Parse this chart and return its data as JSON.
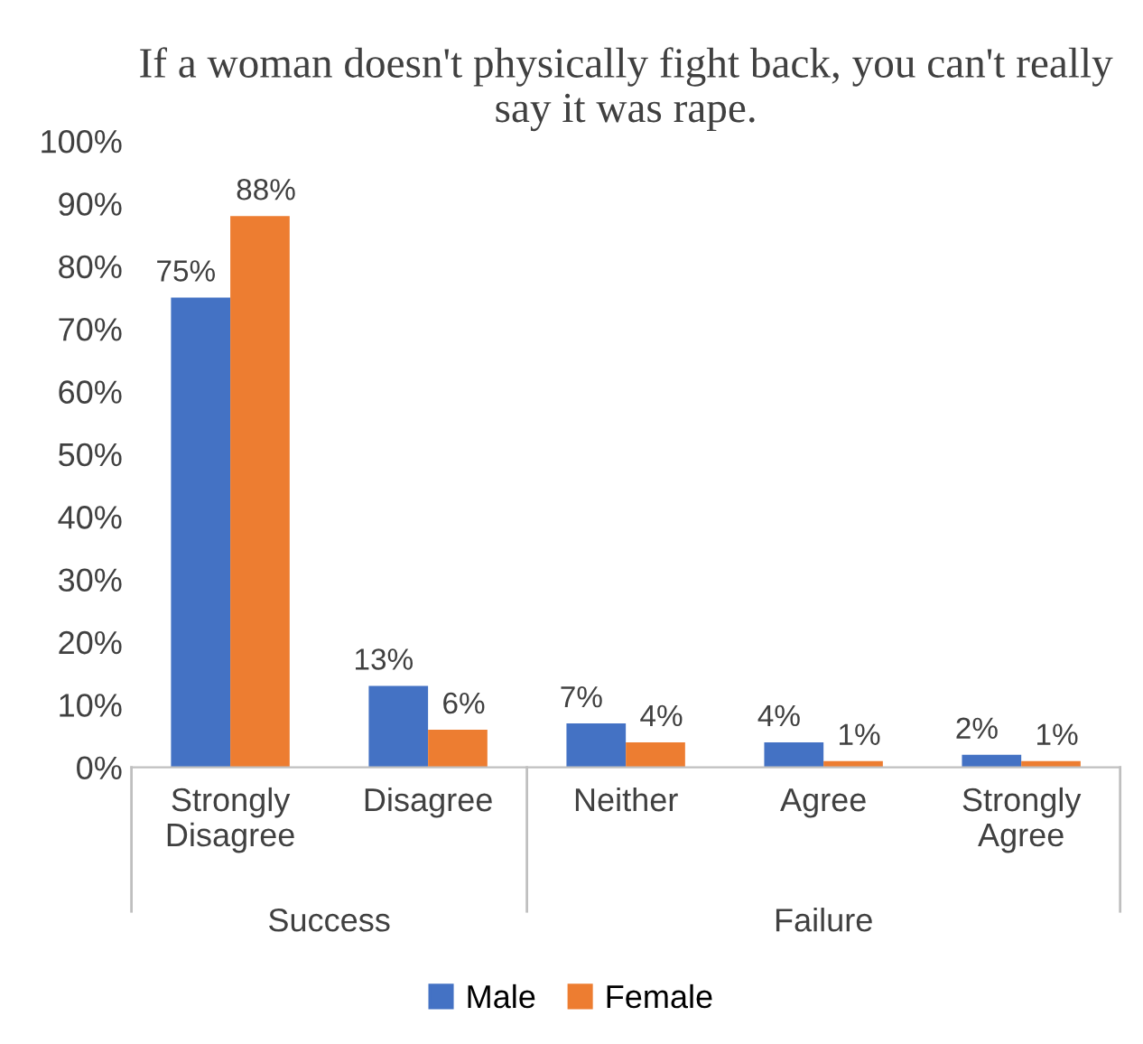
{
  "chart_data": {
    "type": "bar",
    "title": "If a woman doesn't physically fight back, you can't really say it was rape.",
    "categories": [
      "Strongly\nDisagree",
      "Disagree",
      "Neither",
      "Agree",
      "Strongly\nAgree"
    ],
    "series": [
      {
        "name": "Male",
        "color": "#4472c4",
        "values": [
          75,
          13,
          7,
          4,
          2
        ],
        "value_labels": [
          "75%",
          "13%",
          "7%",
          "4%",
          "2%"
        ]
      },
      {
        "name": "Female",
        "color": "#ed7d31",
        "values": [
          88,
          6,
          4,
          1,
          1
        ],
        "value_labels": [
          "88%",
          "6%",
          "4%",
          "1%",
          "1%"
        ]
      }
    ],
    "ylim": [
      0,
      100
    ],
    "yticks": [
      {
        "value": 0,
        "label": "0%"
      },
      {
        "value": 10,
        "label": "10%"
      },
      {
        "value": 20,
        "label": "20%"
      },
      {
        "value": 30,
        "label": "30%"
      },
      {
        "value": 40,
        "label": "40%"
      },
      {
        "value": 50,
        "label": "50%"
      },
      {
        "value": 60,
        "label": "60%"
      },
      {
        "value": 70,
        "label": "70%"
      },
      {
        "value": 80,
        "label": "80%"
      },
      {
        "value": 90,
        "label": "90%"
      },
      {
        "value": 100,
        "label": "100%"
      }
    ],
    "annotations": [
      "Success",
      "Failure"
    ],
    "grid": false,
    "legend": "bottom"
  }
}
